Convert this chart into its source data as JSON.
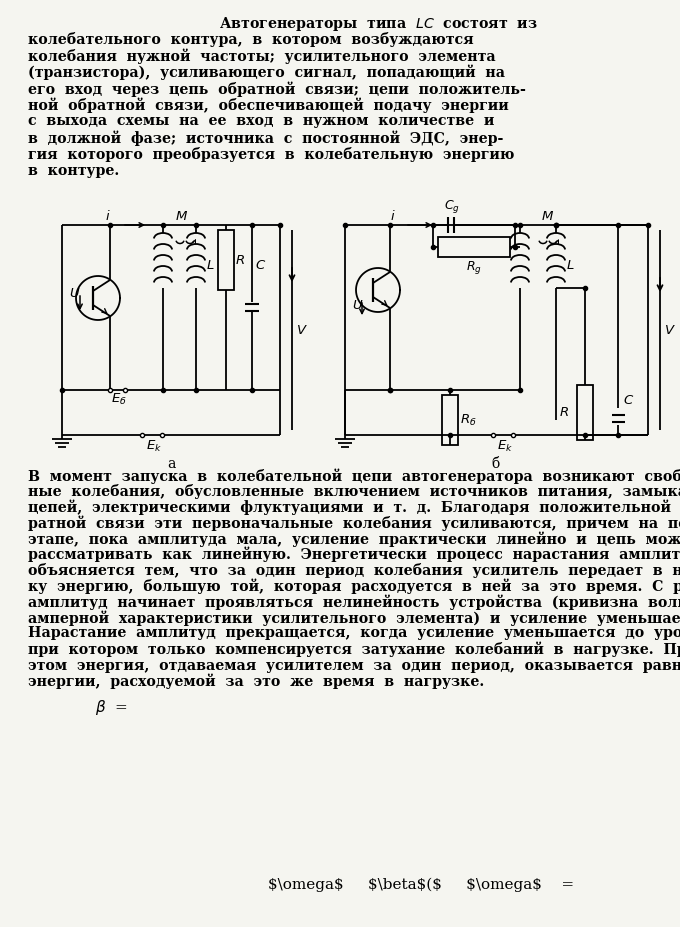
{
  "bg_color": "#f5f5f0",
  "text_color": "#111111",
  "para1_indent": "          Автогенераторы  типа  $LC$  состоят  из",
  "para1_lines": [
    "          Автогенераторы  типа  $LC$  состоят  из",
    "колебательного  контура,  в  котором  возбуждаются",
    "колебания  нужной  частоты;  усилительного  элемента",
    "(транзистора),  усиливающего  сигнал,  попадающий  на",
    "его  вход  через  цепь  обратной  связи;  цепи  положитель-",
    "ной  обратной  связи,  обеспечивающей  подачу  энергии",
    "с  выхода  схемы  на  ее  вход  в  нужном  количестве  и",
    "в  должной  фазе;  источника  с  постоянной  ЭДС,  энер-",
    "гия  которого  преобразуется  в  колебательную  энергию",
    "в  контуре."
  ],
  "para2_lines": [
    "В  момент  запуска  в  колебательной  цепи  автогенератора  возникают  свобод-",
    "ные  колебания,  обусловленные  включением  источников  питания,  замыканием",
    "цепей,  электрическими  флуктуациями  и  т.  д.  Благодаря  положительной  об-",
    "ратной  связи  эти  первоначальные  колебания  усиливаются,  причем  на  первом",
    "этапе,  пока  амплитуда  мала,  усиление  практически  линейно  и  цепь  можно",
    "рассматривать  как  линейную.  Энергетически  процесс  нарастания  амплитуд",
    "объясняется  тем,  что  за  один  период  колебания  усилитель  передает  в  нагруз-",
    "ку  энергию,  большую  той,  которая  расходуется  в  ней  за  это  время.  С  ростом",
    "амплитуд  начинает  проявляться  нелинейность  устройства  (кривизна  вольт-",
    "амперной  характеристики  усилительного  элемента)  и  усиление  уменьшается.",
    "Нарастание  амплитуд  прекращается,  когда  усиление  уменьшается  до  уровня,",
    "при  котором  только  компенсируется  затухание  колебаний  в  нагрузке.  При",
    "этом  энергия,  отдаваемая  усилителем  за  один  период,  оказывается  равной",
    "энергии,  расходуемой  за  это  же  время  в  нагрузке."
  ],
  "label_a": "а",
  "label_b": "б"
}
